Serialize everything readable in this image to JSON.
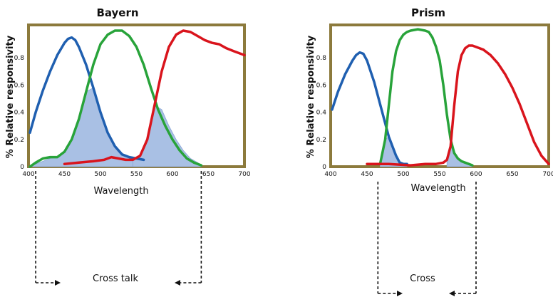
{
  "chart_data": [
    {
      "id": "bayern",
      "type": "line",
      "title": "Bayern",
      "xlabel": "Wavelength",
      "ylabel": "% Relative responsivity",
      "xlim": [
        400,
        700
      ],
      "ylim": [
        0,
        1.0
      ],
      "x_ticks": [
        "400",
        "450",
        "500",
        "550",
        "600",
        "650",
        "700"
      ],
      "y_ticks": [
        "0",
        "0.2",
        "0.4",
        "0.6",
        "0.8"
      ],
      "series": [
        {
          "name": "blue",
          "color": "#1f5fb0",
          "x": [
            402,
            410,
            420,
            430,
            440,
            450,
            455,
            460,
            465,
            470,
            480,
            490,
            500,
            510,
            520,
            530,
            540,
            550,
            560
          ],
          "y": [
            0.25,
            0.4,
            0.56,
            0.7,
            0.82,
            0.91,
            0.94,
            0.95,
            0.93,
            0.88,
            0.75,
            0.58,
            0.4,
            0.25,
            0.15,
            0.09,
            0.07,
            0.06,
            0.05
          ]
        },
        {
          "name": "green",
          "color": "#28a33a",
          "x": [
            402,
            410,
            420,
            430,
            440,
            450,
            460,
            470,
            480,
            490,
            500,
            510,
            520,
            530,
            540,
            550,
            560,
            570,
            580,
            590,
            600,
            610,
            620,
            630,
            640
          ],
          "y": [
            0.0,
            0.03,
            0.06,
            0.07,
            0.07,
            0.11,
            0.2,
            0.35,
            0.55,
            0.75,
            0.9,
            0.97,
            1.0,
            1.0,
            0.96,
            0.88,
            0.75,
            0.58,
            0.42,
            0.3,
            0.2,
            0.12,
            0.06,
            0.03,
            0.01
          ]
        },
        {
          "name": "red",
          "color": "#d9141c",
          "x": [
            450,
            470,
            490,
            505,
            515,
            525,
            535,
            545,
            555,
            565,
            575,
            585,
            595,
            605,
            615,
            625,
            635,
            645,
            655,
            665,
            675,
            685,
            695,
            700
          ],
          "y": [
            0.02,
            0.03,
            0.04,
            0.05,
            0.07,
            0.06,
            0.05,
            0.05,
            0.08,
            0.2,
            0.45,
            0.7,
            0.88,
            0.97,
            1.0,
            0.99,
            0.96,
            0.93,
            0.91,
            0.9,
            0.87,
            0.85,
            0.83,
            0.82
          ]
        }
      ],
      "shaded_regions": [
        {
          "x": [
            400,
            410,
            420,
            430,
            440,
            450,
            460,
            470,
            480,
            490,
            500,
            510,
            520,
            530,
            540,
            550,
            560
          ],
          "y": [
            0.0,
            0.02,
            0.04,
            0.06,
            0.07,
            0.11,
            0.2,
            0.35,
            0.55,
            0.58,
            0.4,
            0.25,
            0.15,
            0.09,
            0.07,
            0.06,
            0.05
          ]
        },
        {
          "x": [
            545,
            555,
            565,
            575,
            585,
            595,
            605,
            615,
            625,
            635,
            640
          ],
          "y": [
            0.05,
            0.08,
            0.2,
            0.45,
            0.42,
            0.3,
            0.2,
            0.12,
            0.06,
            0.03,
            0.01
          ]
        }
      ],
      "annotation": {
        "text": "Cross talk",
        "bracket_x": [
          410,
          640
        ]
      }
    },
    {
      "id": "prism",
      "type": "line",
      "title": "Prism",
      "xlabel": "Wavelength",
      "ylabel": "% Relative responsivity",
      "xlim": [
        400,
        700
      ],
      "ylim": [
        0,
        1.0
      ],
      "x_ticks": [
        "400",
        "450",
        "500",
        "550",
        "600",
        "650",
        "700"
      ],
      "y_ticks": [
        "0",
        "0.2",
        "0.4",
        "0.6",
        "0.8"
      ],
      "series": [
        {
          "name": "blue",
          "color": "#1f5fb0",
          "x": [
            402,
            410,
            420,
            430,
            435,
            440,
            445,
            450,
            460,
            470,
            480,
            490,
            495,
            500,
            505
          ],
          "y": [
            0.42,
            0.55,
            0.68,
            0.78,
            0.82,
            0.84,
            0.83,
            0.78,
            0.62,
            0.42,
            0.22,
            0.08,
            0.03,
            0.02,
            0.02
          ]
        },
        {
          "name": "green",
          "color": "#28a33a",
          "x": [
            468,
            475,
            480,
            485,
            490,
            495,
            500,
            505,
            510,
            520,
            530,
            535,
            540,
            545,
            550,
            555,
            560,
            565,
            570,
            575,
            580,
            585,
            590,
            595
          ],
          "y": [
            0.02,
            0.2,
            0.45,
            0.7,
            0.85,
            0.93,
            0.97,
            0.99,
            1.0,
            1.01,
            1.0,
            0.99,
            0.95,
            0.88,
            0.78,
            0.6,
            0.38,
            0.2,
            0.1,
            0.06,
            0.04,
            0.03,
            0.02,
            0.01
          ]
        },
        {
          "name": "red",
          "color": "#d9141c",
          "x": [
            450,
            480,
            510,
            530,
            545,
            555,
            560,
            565,
            570,
            575,
            580,
            585,
            590,
            595,
            600,
            610,
            620,
            630,
            640,
            650,
            660,
            670,
            680,
            690,
            700
          ],
          "y": [
            0.02,
            0.02,
            0.01,
            0.02,
            0.02,
            0.03,
            0.05,
            0.15,
            0.45,
            0.7,
            0.82,
            0.87,
            0.89,
            0.89,
            0.88,
            0.86,
            0.82,
            0.76,
            0.68,
            0.58,
            0.46,
            0.32,
            0.18,
            0.08,
            0.02
          ]
        }
      ],
      "shaded_regions": [
        {
          "x": [
            468,
            475,
            480,
            485,
            490,
            495,
            500,
            505
          ],
          "y": [
            0.02,
            0.2,
            0.22,
            0.16,
            0.08,
            0.03,
            0.02,
            0.02
          ]
        },
        {
          "x": [
            560,
            565,
            570,
            575,
            580,
            585,
            590,
            595
          ],
          "y": [
            0.05,
            0.15,
            0.1,
            0.06,
            0.04,
            0.03,
            0.02,
            0.01
          ]
        }
      ],
      "annotation": {
        "text": "Cross",
        "bracket_x": [
          465,
          600
        ]
      }
    }
  ],
  "colors": {
    "frame": "#8c7a3c",
    "shade": "#a9c0e4",
    "shade_edge": "#8aa6d6",
    "arrow": "#111111"
  }
}
